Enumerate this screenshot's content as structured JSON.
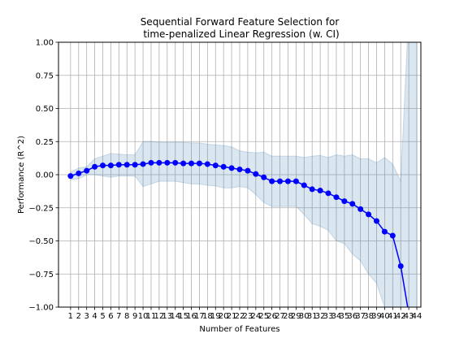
{
  "chart_data": {
    "type": "line",
    "title_lines": [
      "Sequential Forward Feature Selection for",
      "time-penalized Linear Regression (w. CI)"
    ],
    "xlabel": "Number of Features",
    "ylabel": "Performance (R^2)",
    "xlim": [
      -0.5,
      44.5
    ],
    "ylim": [
      -1.0,
      1.0
    ],
    "yticks": [
      -1.0,
      -0.75,
      -0.5,
      -0.25,
      0.0,
      0.25,
      0.5,
      0.75,
      1.0
    ],
    "ytick_labels": [
      "−1.00",
      "−0.75",
      "−0.50",
      "−0.25",
      "0.00",
      "0.25",
      "0.50",
      "0.75",
      "1.00"
    ],
    "grid": true,
    "colors": {
      "line": "#0000ff",
      "marker": "#0000ff",
      "ci_fill": "#4682b4",
      "grid": "#b0b0b0"
    },
    "series": [
      {
        "x": [
          1,
          2,
          3,
          4,
          5,
          6,
          7,
          8,
          9,
          10,
          11,
          12,
          13,
          14,
          15,
          16,
          17,
          18,
          19,
          20,
          21,
          22,
          23,
          24,
          25,
          26,
          27,
          28,
          29,
          30,
          31,
          32,
          33,
          34,
          35,
          36,
          37,
          38,
          39,
          40,
          41,
          42,
          43,
          44
        ],
        "y": [
          -0.01,
          0.01,
          0.03,
          0.06,
          0.07,
          0.07,
          0.075,
          0.075,
          0.075,
          0.08,
          0.09,
          0.09,
          0.09,
          0.09,
          0.085,
          0.085,
          0.085,
          0.08,
          0.07,
          0.06,
          0.05,
          0.04,
          0.03,
          0.005,
          -0.02,
          -0.05,
          -0.05,
          -0.05,
          -0.05,
          -0.08,
          -0.11,
          -0.12,
          -0.14,
          -0.17,
          -0.2,
          -0.22,
          -0.26,
          -0.3,
          -0.35,
          -0.43,
          -0.46,
          -0.69,
          -1.05,
          null
        ],
        "ci_upper": [
          0.02,
          0.05,
          0.06,
          0.12,
          0.14,
          0.16,
          0.155,
          0.15,
          0.15,
          0.25,
          0.25,
          0.245,
          0.245,
          0.245,
          0.245,
          0.24,
          0.24,
          0.23,
          0.225,
          0.22,
          0.21,
          0.18,
          0.17,
          0.165,
          0.17,
          0.14,
          0.14,
          0.14,
          0.14,
          0.13,
          0.14,
          0.145,
          0.13,
          0.15,
          0.14,
          0.15,
          0.12,
          0.12,
          0.09,
          0.13,
          0.08,
          -0.05,
          1.25,
          1.25
        ],
        "ci_lower": [
          -0.04,
          -0.03,
          0.0,
          0.0,
          -0.01,
          -0.02,
          -0.01,
          -0.01,
          -0.01,
          -0.09,
          -0.07,
          -0.05,
          -0.05,
          -0.05,
          -0.06,
          -0.07,
          -0.07,
          -0.08,
          -0.085,
          -0.1,
          -0.1,
          -0.09,
          -0.1,
          -0.15,
          -0.21,
          -0.24,
          -0.24,
          -0.24,
          -0.24,
          -0.3,
          -0.37,
          -0.39,
          -0.42,
          -0.5,
          -0.52,
          -0.6,
          -0.65,
          -0.75,
          -0.82,
          -1.0,
          -1.02,
          -1.05,
          -1.25,
          -1.25
        ]
      }
    ]
  }
}
